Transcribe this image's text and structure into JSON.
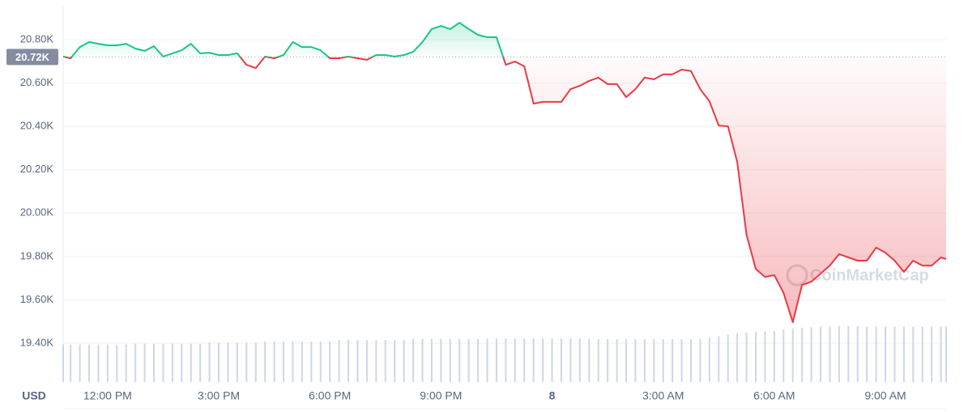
{
  "chart_data": {
    "type": "line",
    "currency_label": "USD",
    "watermark": "CoinMarketCap",
    "reference": 20720,
    "reference_label": "20.72K",
    "up_color": "#16c784",
    "down_color": "#ea3943",
    "volume_color": "#cfd6e4",
    "x": [
      10.8,
      11,
      11.25,
      11.5,
      11.75,
      12,
      12.25,
      12.5,
      12.75,
      13,
      13.25,
      13.5,
      13.75,
      14,
      14.25,
      14.5,
      14.75,
      15,
      15.25,
      15.5,
      15.75,
      16,
      16.25,
      16.5,
      16.75,
      17,
      17.25,
      17.5,
      17.75,
      18,
      18.25,
      18.5,
      18.75,
      19,
      19.25,
      19.5,
      19.75,
      20,
      20.25,
      20.5,
      20.75,
      21,
      21.25,
      21.5,
      21.75,
      22,
      22.25,
      22.5,
      22.75,
      23,
      23.25,
      23.5,
      23.75,
      24,
      24.25,
      24.5,
      24.75,
      25,
      25.25,
      25.5,
      25.75,
      26,
      26.25,
      26.5,
      26.75,
      27,
      27.25,
      27.5,
      27.75,
      28,
      28.25,
      28.5,
      28.75,
      29,
      29.25,
      29.5,
      29.75,
      30,
      30.25,
      30.5,
      30.75,
      31,
      31.25,
      31.5,
      31.75,
      32,
      32.25,
      32.5,
      32.75,
      33,
      33.25,
      33.5,
      33.75,
      34,
      34.25,
      34.5,
      34.64
    ],
    "values": [
      20722,
      20714,
      20766,
      20789,
      20781,
      20774,
      20774,
      20781,
      20759,
      20748,
      20770,
      20722,
      20737,
      20751,
      20781,
      20737,
      20740,
      20729,
      20729,
      20737,
      20684,
      20669,
      20722,
      20714,
      20729,
      20789,
      20766,
      20766,
      20751,
      20714,
      20714,
      20722,
      20714,
      20707,
      20729,
      20729,
      20722,
      20729,
      20744,
      20789,
      20849,
      20863,
      20849,
      20878,
      20849,
      20822,
      20811,
      20811,
      20684,
      20699,
      20677,
      20505,
      20513,
      20513,
      20513,
      20572,
      20587,
      20610,
      20625,
      20595,
      20595,
      20535,
      20572,
      20625,
      20617,
      20640,
      20640,
      20662,
      20655,
      20572,
      20516,
      20404,
      20400,
      20236,
      19900,
      19743,
      19706,
      19714,
      19632,
      19497,
      19669,
      19684,
      19721,
      19758,
      19811,
      19796,
      19781,
      19781,
      19841,
      19818,
      19781,
      19729,
      19781,
      19758,
      19758,
      19796,
      19788
    ],
    "volume": [
      10.0,
      10.0,
      10.0,
      10.0,
      10.0,
      10.0,
      10.0,
      10.0,
      10.2,
      10.2,
      10.2,
      10.2,
      10.2,
      10.2,
      10.2,
      10.2,
      10.5,
      10.5,
      10.5,
      10.5,
      10.5,
      10.5,
      10.8,
      10.8,
      10.8,
      10.8,
      10.8,
      10.8,
      10.8,
      10.8,
      11.2,
      11.2,
      11.2,
      11.2,
      11.2,
      11.2,
      11.2,
      11.2,
      11.5,
      11.5,
      11.5,
      11.5,
      11.5,
      11.5,
      11.5,
      11.5,
      11.6,
      11.6,
      11.6,
      11.6,
      11.6,
      11.6,
      11.6,
      11.6,
      11.6,
      11.6,
      11.6,
      11.6,
      11.4,
      11.4,
      11.4,
      11.4,
      11.4,
      11.4,
      11.4,
      11.4,
      11.4,
      11.4,
      11.4,
      11.4,
      11.8,
      12.2,
      12.6,
      13.0,
      13.2,
      13.4,
      13.5,
      13.6,
      14.0,
      14.3,
      14.5,
      14.6,
      14.7,
      14.8,
      14.9,
      14.9,
      14.9,
      14.8,
      14.8,
      14.8,
      14.8,
      14.8,
      14.8,
      14.8,
      14.8,
      14.8,
      14.8
    ],
    "xlim": [
      10.8,
      34.64
    ],
    "xticks": [
      {
        "value": 12,
        "label": "12:00 PM"
      },
      {
        "value": 15,
        "label": "3:00 PM"
      },
      {
        "value": 18,
        "label": "6:00 PM"
      },
      {
        "value": 21,
        "label": "9:00 PM"
      },
      {
        "value": 24,
        "label": "8"
      },
      {
        "value": 27,
        "label": "3:00 AM"
      },
      {
        "value": 30,
        "label": "6:00 AM"
      },
      {
        "value": 33,
        "label": "9:00 AM"
      }
    ],
    "ylim": [
      19221,
      20953
    ],
    "yticks": [
      {
        "value": 19400,
        "label": "19.40K"
      },
      {
        "value": 19600,
        "label": "19.60K"
      },
      {
        "value": 19800,
        "label": "19.80K"
      },
      {
        "value": 20000,
        "label": "20.00K"
      },
      {
        "value": 20200,
        "label": "20.20K"
      },
      {
        "value": 20400,
        "label": "20.40K"
      },
      {
        "value": 20600,
        "label": "20.60K"
      },
      {
        "value": 20800,
        "label": "20.80K"
      }
    ],
    "y2lim": [
      0,
      100
    ],
    "grid": true
  }
}
